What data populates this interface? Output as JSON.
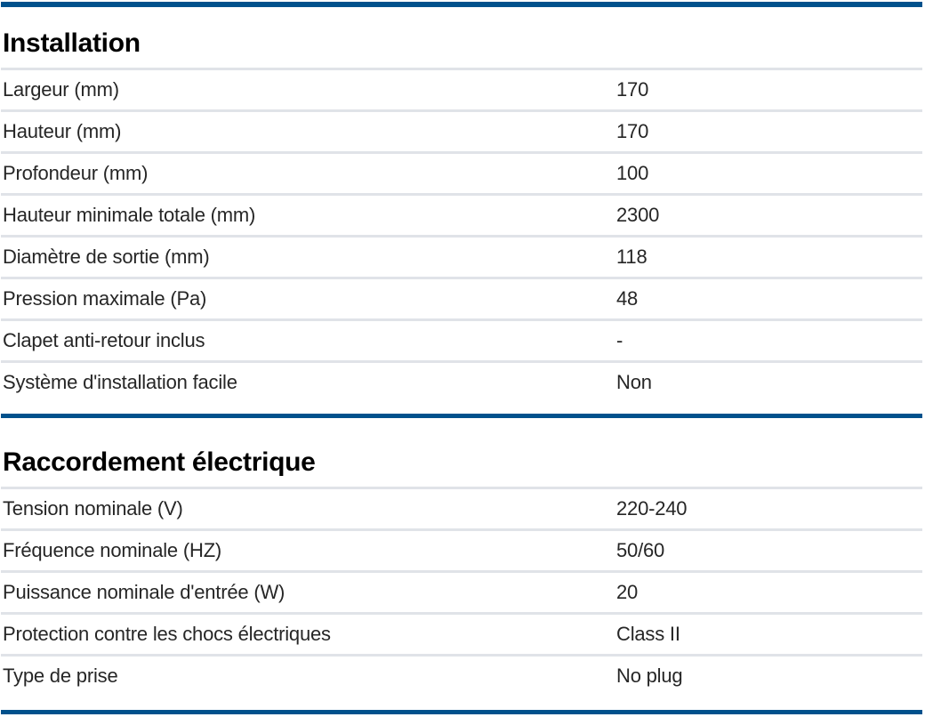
{
  "page": {
    "accent_color": "#00518c",
    "divider_color": "#e0e3e8"
  },
  "sections": [
    {
      "title": "Installation",
      "rows": [
        {
          "label": "Largeur (mm)",
          "value": "170"
        },
        {
          "label": "Hauteur (mm)",
          "value": "170"
        },
        {
          "label": "Profondeur (mm)",
          "value": "100"
        },
        {
          "label": "Hauteur minimale totale (mm)",
          "value": "2300"
        },
        {
          "label": "Diamètre de sortie (mm)",
          "value": "118"
        },
        {
          "label": "Pression maximale (Pa)",
          "value": "48"
        },
        {
          "label": "Clapet anti-retour inclus",
          "value": "-"
        },
        {
          "label": "Système d'installation facile",
          "value": "Non"
        }
      ]
    },
    {
      "title": "Raccordement électrique",
      "rows": [
        {
          "label": "Tension nominale (V)",
          "value": "220-240"
        },
        {
          "label": "Fréquence nominale (HZ)",
          "value": "50/60"
        },
        {
          "label": "Puissance nominale d'entrée (W)",
          "value": "20"
        },
        {
          "label": "Protection contre les chocs électriques",
          "value": "Class II"
        },
        {
          "label": "Type de prise",
          "value": "No plug"
        }
      ]
    }
  ]
}
